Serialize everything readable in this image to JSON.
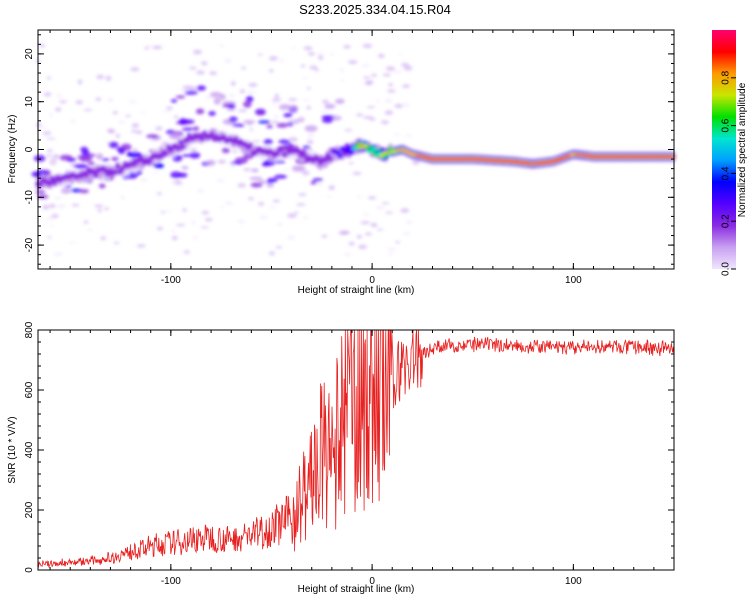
{
  "title": "S233.2025.334.04.15.R04",
  "chart_data": [
    {
      "type": "heatmap",
      "title": "S233.2025.334.04.15.R04",
      "xlabel": "Height of straight line (km)",
      "ylabel": "Frequency (Hz)",
      "xlim": [
        -166,
        150
      ],
      "ylim": [
        -25,
        25
      ],
      "xticks": [
        -100,
        0,
        100
      ],
      "xtick_labels": [
        "-100",
        "0",
        "100"
      ],
      "yticks": [
        -20,
        -10,
        0,
        10,
        20
      ],
      "ytick_labels": [
        "-20",
        "-10",
        "0",
        "10",
        "20"
      ],
      "colorbar": {
        "label": "Normalized spectral amplitude",
        "range": [
          0,
          1
        ],
        "ticks": [
          0.0,
          0.2,
          0.4,
          0.6,
          0.8
        ],
        "tick_labels": [
          "0.0",
          "0.2",
          "0.4",
          "0.6",
          "0.8"
        ],
        "colormap": [
          "#f0e6ff",
          "#c8a0f0",
          "#8a2be2",
          "#5500ff",
          "#0000ff",
          "#00a0ff",
          "#00e5d0",
          "#00e000",
          "#c8e600",
          "#ff9900",
          "#ff0000",
          "#ff0070"
        ]
      },
      "ridge": {
        "x": [
          -166,
          -150,
          -140,
          -130,
          -120,
          -110,
          -100,
          -90,
          -80,
          -70,
          -60,
          -50,
          -40,
          -30,
          -25,
          -20,
          -15,
          -10,
          -5,
          0,
          5,
          10,
          15,
          20,
          30,
          50,
          70,
          80,
          90,
          100,
          110,
          120,
          150
        ],
        "freq_hz": [
          -7,
          -6,
          -5,
          -4.5,
          -3.5,
          -2,
          0,
          2,
          3,
          2,
          0,
          -1,
          0,
          -2,
          -3,
          -1,
          -0.5,
          0,
          1,
          0,
          -1,
          -0.5,
          0,
          -1,
          -2,
          -2,
          -2.5,
          -3,
          -2.5,
          -1,
          -1.5,
          -1.5,
          -1.5
        ],
        "amplitude": [
          0.4,
          0.35,
          0.4,
          0.35,
          0.35,
          0.35,
          0.3,
          0.35,
          0.3,
          0.25,
          0.25,
          0.3,
          0.3,
          0.35,
          0.4,
          0.4,
          0.45,
          0.5,
          0.8,
          0.6,
          0.7,
          0.75,
          0.8,
          0.85,
          0.95,
          0.95,
          0.95,
          0.9,
          0.95,
          0.85,
          0.95,
          0.95,
          0.95
        ]
      }
    },
    {
      "type": "line",
      "xlabel": "Height of straight line (km)",
      "ylabel": "SNR (10 * V/V)",
      "xlim": [
        -166,
        150
      ],
      "ylim": [
        0,
        800
      ],
      "xticks": [
        -100,
        0,
        100
      ],
      "xtick_labels": [
        "-100",
        "0",
        "100"
      ],
      "yticks": [
        0,
        200,
        400,
        600,
        800
      ],
      "ytick_labels": [
        "0",
        "200",
        "400",
        "600",
        "800"
      ],
      "color": "#e82020",
      "series": [
        {
          "name": "SNR",
          "x": [
            -166,
            -150,
            -140,
            -130,
            -120,
            -110,
            -100,
            -90,
            -80,
            -70,
            -60,
            -50,
            -40,
            -35,
            -30,
            -25,
            -20,
            -15,
            -10,
            -5,
            0,
            5,
            10,
            15,
            20,
            25,
            30,
            40,
            50,
            60,
            80,
            100,
            120,
            140,
            150
          ],
          "values": [
            20,
            25,
            30,
            40,
            60,
            80,
            90,
            100,
            110,
            100,
            120,
            140,
            180,
            230,
            300,
            380,
            350,
            480,
            580,
            600,
            620,
            600,
            640,
            680,
            700,
            720,
            740,
            750,
            750,
            750,
            745,
            740,
            745,
            740,
            740
          ]
        }
      ]
    }
  ]
}
